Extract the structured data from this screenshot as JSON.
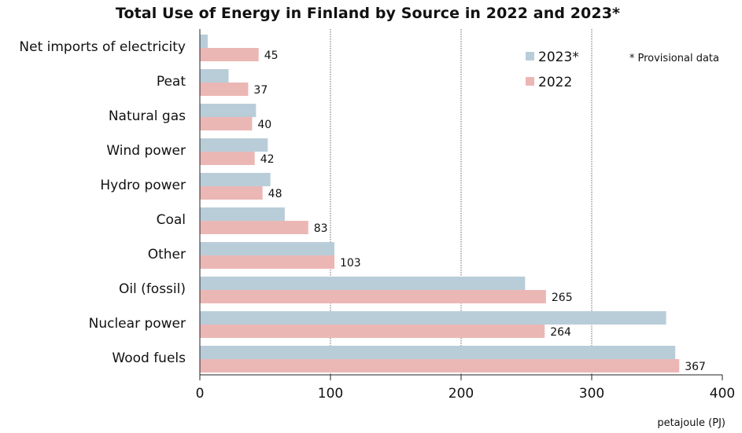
{
  "chart_data": {
    "type": "bar",
    "orientation": "horizontal",
    "title": "Total Use of Energy in Finland by Source in 2022 and 2023*",
    "categories": [
      "Net imports of electricity",
      "Peat",
      "Natural gas",
      "Wind power",
      "Hydro power",
      "Coal",
      "Other",
      "Oil (fossil)",
      "Nuclear power",
      "Wood fuels"
    ],
    "series": [
      {
        "name": "2023*",
        "color": "#b9cdd9",
        "values": [
          6,
          22,
          43,
          52,
          54,
          65,
          103,
          249,
          357,
          364
        ]
      },
      {
        "name": "2022",
        "color": "#ebb7b5",
        "values": [
          45,
          37,
          40,
          42,
          48,
          83,
          103,
          265,
          264,
          367
        ],
        "data_labels": [
          "45",
          "37",
          "40",
          "42",
          "48",
          "83",
          "103",
          "265",
          "264",
          "367"
        ]
      }
    ],
    "xlim": [
      0,
      400
    ],
    "x_ticks": [
      "0",
      "100",
      "200",
      "300",
      "400"
    ],
    "xlabel": "petajoule (PJ)",
    "note": "* Provisional data",
    "grid": "vertical dotted",
    "legend_position": "top-right"
  }
}
